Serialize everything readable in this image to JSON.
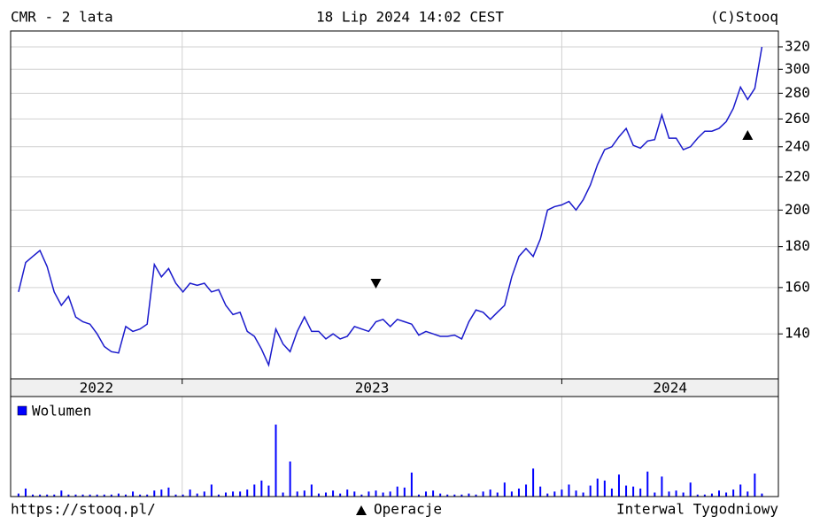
{
  "chart_data": [
    {
      "type": "line",
      "title": "CMR - 2 lata",
      "date": "18 Lip 2024 14:02 CEST",
      "credit": "(C)Stooq",
      "source": "https://stooq.pl/",
      "operations_label": "Operacje",
      "interval": "Interwal Tygodniowy",
      "color": "#1a1acc",
      "log_scale": true,
      "grid": true,
      "values": [
        158,
        172,
        175,
        178,
        170,
        158,
        152,
        156,
        147,
        145,
        144,
        140,
        135,
        133,
        132.5,
        143,
        141,
        142,
        144,
        171,
        165,
        169,
        162,
        158,
        162,
        161,
        162,
        158,
        159,
        152,
        148,
        149,
        141,
        139,
        134,
        128,
        142,
        136,
        133,
        141,
        147,
        141,
        141,
        138,
        140,
        138,
        139,
        143,
        142,
        141,
        145,
        146,
        143,
        146,
        145,
        144,
        139.5,
        141,
        140,
        139,
        139,
        139.5,
        138,
        145,
        150,
        149,
        146,
        149,
        152,
        165,
        175,
        179,
        175,
        184,
        200,
        202,
        203,
        205,
        200,
        206,
        215,
        228,
        238,
        240,
        247,
        253,
        241,
        239,
        244,
        245,
        263,
        246,
        246,
        238,
        240,
        246,
        251,
        251,
        253,
        258,
        268,
        285,
        275,
        284,
        320
      ],
      "xlim": [
        -1.1,
        106.3
      ],
      "xticks": [
        22.9,
        76
      ],
      "year_labels": [
        "2022",
        "2023",
        "2024"
      ],
      "ylim": [
        123,
        335
      ],
      "yticks": [
        140,
        160,
        180,
        200,
        220,
        240,
        260,
        280,
        300,
        320
      ],
      "signals": [
        {
          "kind": "down",
          "x": 50,
          "value": 162
        },
        {
          "kind": "up",
          "x": 102,
          "value": 248
        }
      ]
    },
    {
      "type": "bar",
      "ylim": [
        0,
        100
      ],
      "series": [
        {
          "name": "Wolumen",
          "color": "#0000ff",
          "values": [
            3,
            8,
            2,
            2,
            2,
            2,
            6,
            2,
            2,
            2,
            2,
            2,
            2,
            2,
            3,
            2,
            5,
            2,
            2,
            6,
            7,
            9,
            2,
            2,
            7,
            3,
            5,
            12,
            2,
            4,
            5,
            5,
            7,
            12,
            16,
            11,
            72,
            4,
            35,
            5,
            6,
            12,
            3,
            4,
            6,
            3,
            7,
            5,
            2,
            5,
            6,
            4,
            5,
            10,
            9,
            24,
            2,
            5,
            6,
            3,
            2,
            2,
            2,
            3,
            2,
            5,
            7,
            4,
            14,
            5,
            8,
            12,
            28,
            10,
            3,
            5,
            7,
            12,
            6,
            4,
            11,
            18,
            16,
            8,
            22,
            11,
            10,
            8,
            25,
            4,
            20,
            5,
            6,
            4,
            14,
            2,
            2,
            3,
            6,
            4,
            7,
            12,
            5,
            23,
            3
          ]
        }
      ]
    }
  ]
}
